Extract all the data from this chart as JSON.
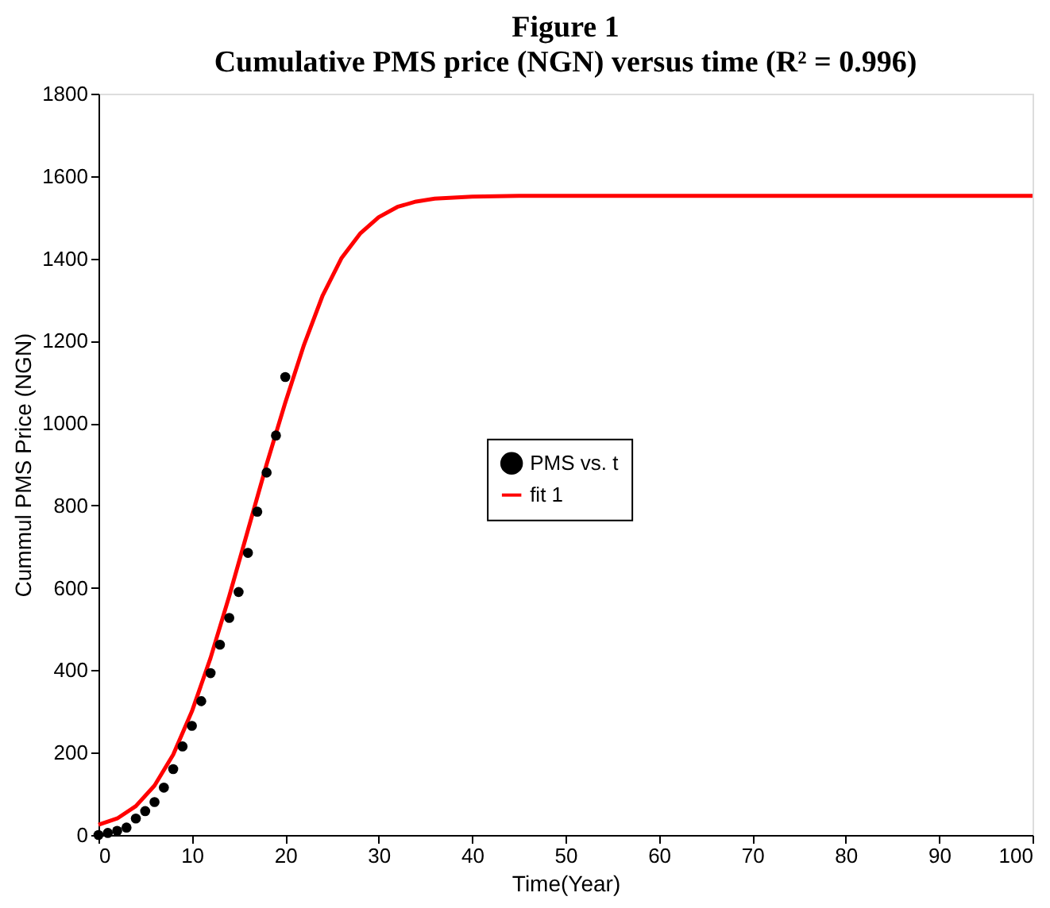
{
  "chart_data": {
    "type": "scatter",
    "title": "Figure 1",
    "subtitle": "Cumulative PMS price (NGN) versus time (R² = 0.996)",
    "xlabel": "Time(Year)",
    "ylabel": "Cummul PMS Price (NGN)",
    "xlim": [
      0,
      100
    ],
    "xticks": [
      0,
      10,
      20,
      30,
      40,
      50,
      60,
      70,
      80,
      90,
      100
    ],
    "ylim": [
      0,
      1800
    ],
    "yticks": [
      0,
      200,
      400,
      600,
      800,
      1000,
      1200,
      1400,
      1600,
      1800
    ],
    "grid": false,
    "legend": "center",
    "series": [
      {
        "name": "PMS vs. t",
        "marker": "circle",
        "color": "#000000",
        "x": [
          0,
          1,
          2,
          3,
          4,
          5,
          6,
          7,
          8,
          9,
          10,
          11,
          12,
          13,
          14,
          15,
          16,
          17,
          18,
          19,
          20
        ],
        "values": [
          0,
          5,
          10,
          18,
          40,
          58,
          80,
          115,
          160,
          215,
          265,
          325,
          393,
          462,
          527,
          590,
          685,
          785,
          880,
          970,
          1112
        ]
      },
      {
        "name": "fit 1",
        "type": "line",
        "marker": "none",
        "line_style": "solid",
        "color": "#ff0000",
        "x": [
          0,
          2,
          4,
          6,
          8,
          10,
          12,
          14,
          16,
          18,
          20,
          22,
          24,
          26,
          28,
          30,
          32,
          34,
          36,
          40,
          45,
          100
        ],
        "values": [
          25,
          40,
          70,
          120,
          195,
          300,
          430,
          580,
          740,
          900,
          1050,
          1190,
          1310,
          1400,
          1460,
          1500,
          1525,
          1538,
          1545,
          1550,
          1552,
          1552
        ]
      }
    ]
  }
}
